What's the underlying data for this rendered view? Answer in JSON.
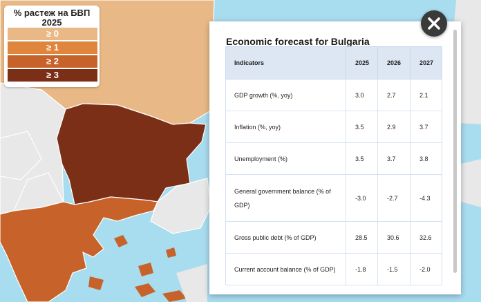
{
  "legend": {
    "title": "% растеж на БВП 2025",
    "items": [
      {
        "label": "≥ 0",
        "color": "#e8b987"
      },
      {
        "label": "≥ 1",
        "color": "#e0853c"
      },
      {
        "label": "≥ 2",
        "color": "#c7632a"
      },
      {
        "label": "≥ 3",
        "color": "#7a2f16"
      }
    ]
  },
  "map_colors": {
    "sea": "#a8dcef",
    "land_neutral": "#e8e8e8",
    "romania": "#e8b987",
    "bulgaria": "#7a2f16",
    "greece": "#c7632a",
    "border": "#ffffff"
  },
  "panel": {
    "title": "Economic forecast for Bulgaria",
    "headers": [
      "Indicators",
      "2025",
      "2026",
      "2027"
    ],
    "rows": [
      [
        "GDP growth (%, yoy)",
        "3.0",
        "2.7",
        "2.1"
      ],
      [
        "Inflation (%, yoy)",
        "3.5",
        "2.9",
        "3.7"
      ],
      [
        "Unemployment (%)",
        "3.5",
        "3.7",
        "3.8"
      ],
      [
        "General government balance (% of GDP)",
        "-3.0",
        "-2.7",
        "-4.3"
      ],
      [
        "Gross public debt (% of GDP)",
        "28.5",
        "30.6",
        "32.6"
      ],
      [
        "Current account balance (% of GDP)",
        "-1.8",
        "-1.5",
        "-2.0"
      ]
    ]
  },
  "close_icon": "close-icon"
}
